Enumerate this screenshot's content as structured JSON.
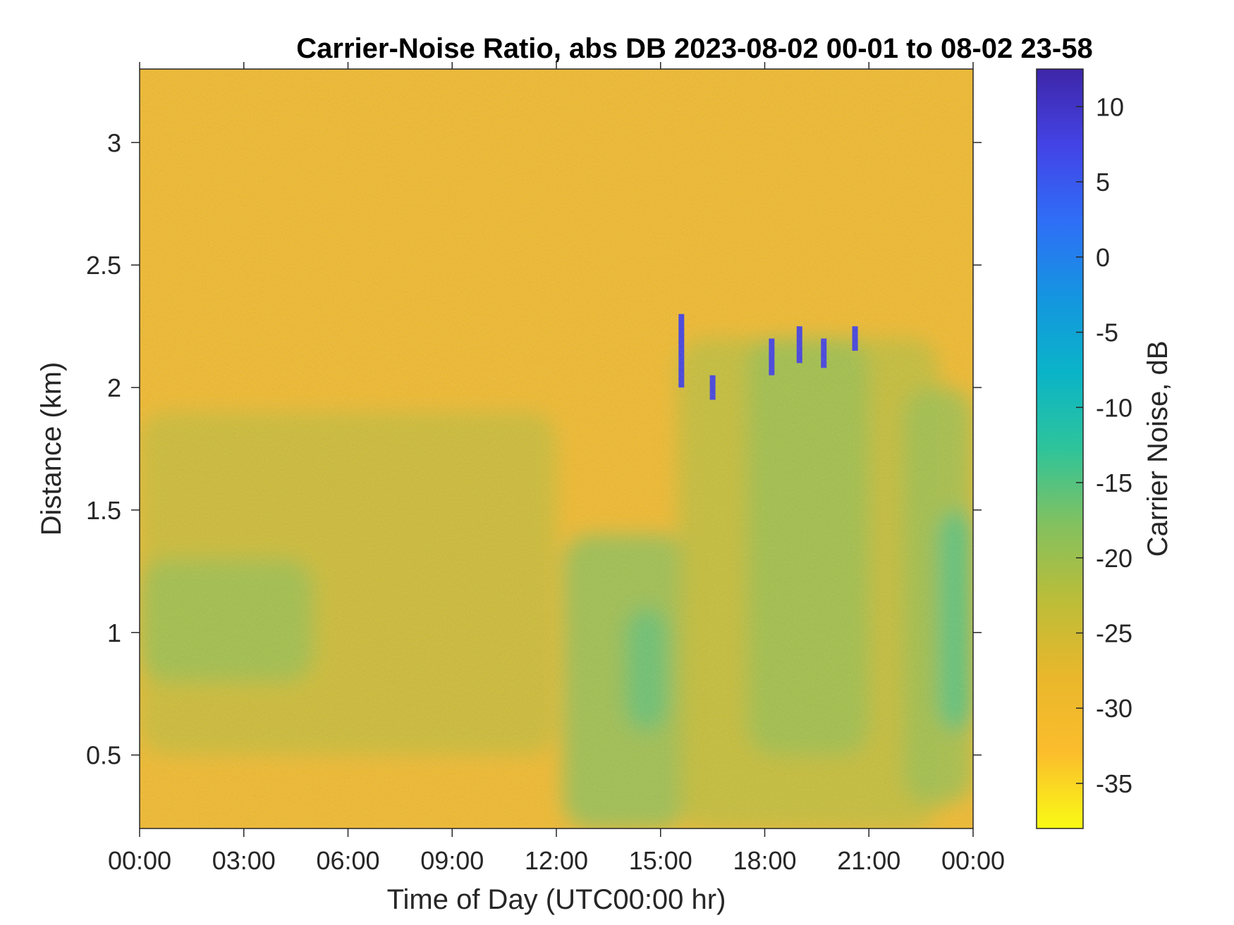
{
  "chart_data": {
    "type": "heatmap",
    "title": "Carrier-Noise Ratio, abs DB 2023-08-02 00-01 to 08-02 23-58",
    "xlabel": "Time of Day (UTC00:00 hr)",
    "ylabel": "Distance (km)",
    "x_ticks": [
      "00:00",
      "03:00",
      "06:00",
      "09:00",
      "12:00",
      "15:00",
      "18:00",
      "21:00",
      "00:00"
    ],
    "x_tick_hours": [
      0,
      3,
      6,
      9,
      12,
      15,
      18,
      21,
      24
    ],
    "xlim_hours": [
      0,
      24
    ],
    "y_ticks": [
      "0.5",
      "1",
      "1.5",
      "2",
      "2.5",
      "3"
    ],
    "y_tick_values": [
      0.5,
      1,
      1.5,
      2,
      2.5,
      3
    ],
    "ylim": [
      0.2,
      3.3
    ],
    "colorbar": {
      "label": "Carrier Noise, dB",
      "ticks": [
        "10",
        "5",
        "0",
        "-5",
        "-10",
        "-15",
        "-20",
        "-25",
        "-30",
        "-35"
      ],
      "tick_values": [
        10,
        5,
        0,
        -5,
        -10,
        -15,
        -20,
        -25,
        -30,
        -35
      ],
      "range": [
        -38,
        12.5
      ],
      "colormap": "parula",
      "stops": [
        "#f9fb15",
        "#fbbd2c",
        "#e9b72c",
        "#bcbd38",
        "#83c15f",
        "#2ec49a",
        "#0ab4c8",
        "#1495e0",
        "#2f6ef7",
        "#4343e5",
        "#3e26a8"
      ]
    },
    "background_value_db": -30,
    "regions": [
      {
        "hour_start": 0,
        "hour_end": 12,
        "distance_start": 0.5,
        "distance_end": 1.9,
        "value_db": -24
      },
      {
        "hour_start": 0,
        "hour_end": 5,
        "distance_start": 0.8,
        "distance_end": 1.3,
        "value_db": -20
      },
      {
        "hour_start": 12.2,
        "hour_end": 15.8,
        "distance_start": 0.2,
        "distance_end": 1.4,
        "value_db": -19
      },
      {
        "hour_start": 14,
        "hour_end": 15.2,
        "distance_start": 0.6,
        "distance_end": 1.1,
        "value_db": -16
      },
      {
        "hour_start": 15.5,
        "hour_end": 23,
        "distance_start": 0.2,
        "distance_end": 2.2,
        "value_db": -23
      },
      {
        "hour_start": 17.5,
        "hour_end": 21,
        "distance_start": 0.5,
        "distance_end": 2.2,
        "value_db": -20
      },
      {
        "hour_start": 22,
        "hour_end": 24,
        "distance_start": 0.3,
        "distance_end": 2.0,
        "value_db": -20
      },
      {
        "hour_start": 23,
        "hour_end": 24,
        "distance_start": 0.6,
        "distance_end": 1.5,
        "value_db": -15
      }
    ],
    "cloud_returns": [
      {
        "hour": 15.6,
        "distance_start": 2.0,
        "distance_end": 2.3,
        "value_db": 8
      },
      {
        "hour": 16.5,
        "distance_start": 1.95,
        "distance_end": 2.05,
        "value_db": 8
      },
      {
        "hour": 18.2,
        "distance_start": 2.05,
        "distance_end": 2.2,
        "value_db": 8
      },
      {
        "hour": 19,
        "distance_start": 2.1,
        "distance_end": 2.25,
        "value_db": 8
      },
      {
        "hour": 19.7,
        "distance_start": 2.08,
        "distance_end": 2.2,
        "value_db": 8
      },
      {
        "hour": 20.6,
        "distance_start": 2.15,
        "distance_end": 2.25,
        "value_db": 8
      }
    ]
  }
}
